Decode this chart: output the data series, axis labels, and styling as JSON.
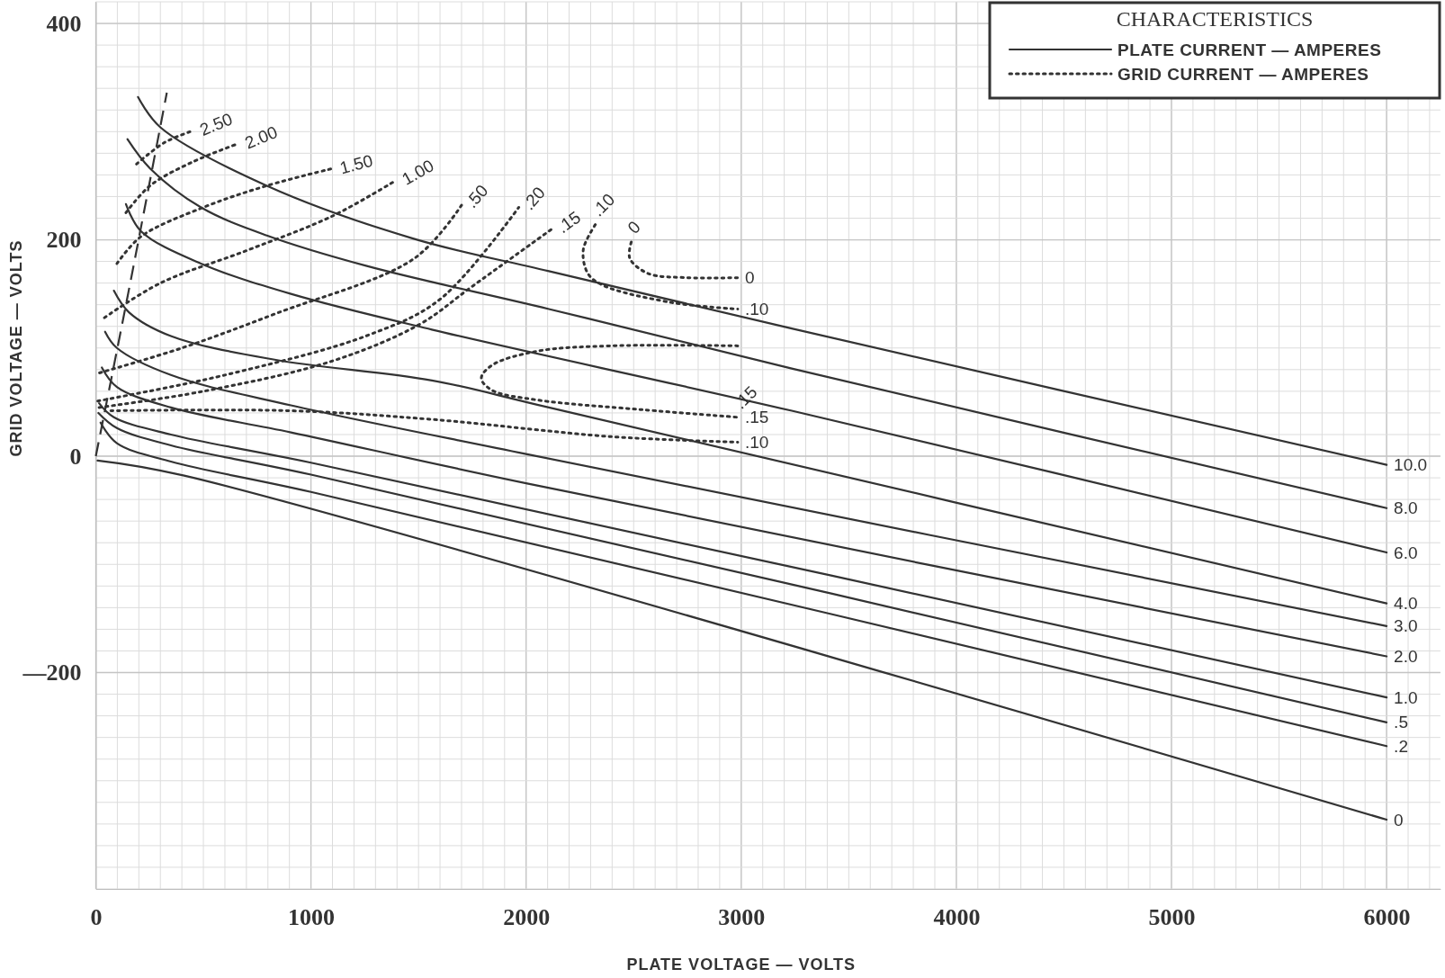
{
  "chart_data": {
    "type": "line",
    "legend_title": "CHARACTERISTICS",
    "xlabel": "PLATE VOLTAGE — VOLTS",
    "ylabel": "GRID VOLTAGE — VOLTS",
    "xlim": [
      0,
      6250
    ],
    "ylim": [
      -400,
      420
    ],
    "xticks": [
      0,
      1000,
      2000,
      3000,
      4000,
      5000,
      6000
    ],
    "yticks": [
      {
        "value": -200,
        "label": "—200"
      },
      0,
      200,
      400
    ],
    "grid": true,
    "annotations": [
      "PLATE CURRENT — AMPERES",
      "GRID CURRENT — AMPERES",
      {
        "text": "0",
        "x": 2489,
        "y": 198
      },
      {
        "text": ".10",
        "x": 2322,
        "y": 214
      },
      {
        "text": ".15",
        "x": 2984,
        "y": 36
      }
    ],
    "series": [
      {
        "name": "10.0",
        "line_style": "solid",
        "color": "#333333",
        "x": [
          196,
          300,
          795,
          1478,
          2106,
          3235,
          6000
        ],
        "values": [
          332,
          304,
          250,
          201,
          171,
          118,
          -8
        ]
      },
      {
        "name": "8.0",
        "line_style": "solid",
        "color": "#333333",
        "x": [
          147,
          252,
          489,
          795,
          1256,
          2106,
          3235,
          6000
        ],
        "values": [
          293,
          266,
          230,
          204,
          176,
          136,
          81,
          -48
        ]
      },
      {
        "name": "6.0",
        "line_style": "solid",
        "color": "#333333",
        "x": [
          140,
          210,
          489,
          907,
          1562,
          3235,
          6000
        ],
        "values": [
          233,
          208,
          178,
          150,
          117,
          42,
          -89
        ]
      },
      {
        "name": "4.0",
        "line_style": "solid",
        "color": "#333333",
        "x": [
          84,
          154,
          349,
          837,
          1562,
          2106,
          6000
        ],
        "values": [
          153,
          133,
          111,
          89,
          70,
          45,
          -136
        ]
      },
      {
        "name": "3.0",
        "line_style": "solid",
        "color": "#333333",
        "x": [
          43,
          98,
          349,
          907,
          2000,
          6000
        ],
        "values": [
          115,
          100,
          75,
          47,
          2,
          -157
        ]
      },
      {
        "name": "2.0",
        "line_style": "solid",
        "color": "#333333",
        "x": [
          28,
          98,
          349,
          907,
          2000,
          6000
        ],
        "values": [
          82,
          64,
          45,
          22,
          -25,
          -185
        ]
      },
      {
        "name": "1.0",
        "line_style": "solid",
        "color": "#333333",
        "x": [
          15,
          84,
          349,
          1000,
          6000
        ],
        "values": [
          49,
          36,
          20,
          -6,
          -223
        ]
      },
      {
        "name": ".5",
        "line_style": "solid",
        "color": "#333333",
        "x": [
          12,
          98,
          349,
          1000,
          6000
        ],
        "values": [
          40,
          26,
          10,
          -17,
          -246
        ]
      },
      {
        "name": ".2",
        "line_style": "solid",
        "color": "#333333",
        "x": [
          22,
          98,
          349,
          1000,
          6000
        ],
        "values": [
          31,
          12,
          -5,
          -33,
          -268
        ]
      },
      {
        "name": "0",
        "line_style": "solid",
        "color": "#333333",
        "x": [
          8,
          411,
          6000
        ],
        "values": [
          -4,
          -18,
          -336
        ]
      },
      {
        "line_style": "dashed",
        "color": "#333333",
        "x": [
          0,
          150,
          330
        ],
        "values": [
          0,
          150,
          336
        ]
      },
      {
        "name": "2.50",
        "line_style": "dotted",
        "color": "#333333",
        "x": [
          189,
          320,
          454
        ],
        "values": [
          270,
          290,
          301
        ]
      },
      {
        "name": "2.00",
        "line_style": "dotted",
        "color": "#333333",
        "x": [
          140,
          252,
          450,
          663
        ],
        "values": [
          225,
          250,
          272,
          289
        ]
      },
      {
        "name": "1.50",
        "line_style": "dotted",
        "color": "#333333",
        "x": [
          98,
          210,
          500,
          795,
          1102
        ],
        "values": [
          178,
          203,
          230,
          250,
          266
        ]
      },
      {
        "name": "1.00",
        "line_style": "dotted",
        "color": "#333333",
        "x": [
          40,
          300,
          700,
          1100,
          1396
        ],
        "values": [
          128,
          160,
          190,
          222,
          255
        ]
      },
      {
        "name": ".50",
        "line_style": "dotted",
        "color": "#333333",
        "x": [
          17,
          400,
          839,
          1482,
          1700
        ],
        "values": [
          77,
          100,
          132,
          183,
          232
        ]
      },
      {
        "name": ".20",
        "line_style": "dotted",
        "color": "#333333",
        "x": [
          9,
          600,
          1268,
          1600,
          1966
        ],
        "values": [
          51,
          75,
          112,
          145,
          230
        ]
      },
      {
        "name": ".15",
        "line_style": "dotted",
        "color": "#333333",
        "x": [
          15,
          500,
          1100,
          1506,
          1743,
          2120
        ],
        "values": [
          45,
          60,
          88,
          122,
          156,
          210
        ]
      },
      {
        "name": ".10",
        "line_style": "dotted",
        "color": "#333333",
        "x": [
          2322,
          2266,
          2287,
          2357,
          2678,
          2984
        ],
        "values": [
          214,
          191,
          169,
          158,
          142,
          136
        ]
      },
      {
        "name": "0",
        "line_style": "dotted",
        "color": "#333333",
        "x": [
          2489,
          2482,
          2566,
          2747,
          2984
        ],
        "values": [
          198,
          183,
          169,
          165,
          165
        ]
      },
      {
        "name": ".15",
        "line_style": "dotted",
        "color": "#333333",
        "x": [
          2984,
          2398,
          2050,
          1841,
          1792,
          1841,
          2050,
          2538,
          2984
        ],
        "values": [
          102,
          102,
          97,
          84,
          72,
          61,
          52,
          43,
          36
        ]
      },
      {
        "name": ".10",
        "line_style": "dotted",
        "color": "#333333",
        "x": [
          70,
          907,
          1562,
          2398,
          2984
        ],
        "values": [
          42,
          42,
          34,
          18,
          13
        ]
      }
    ]
  }
}
